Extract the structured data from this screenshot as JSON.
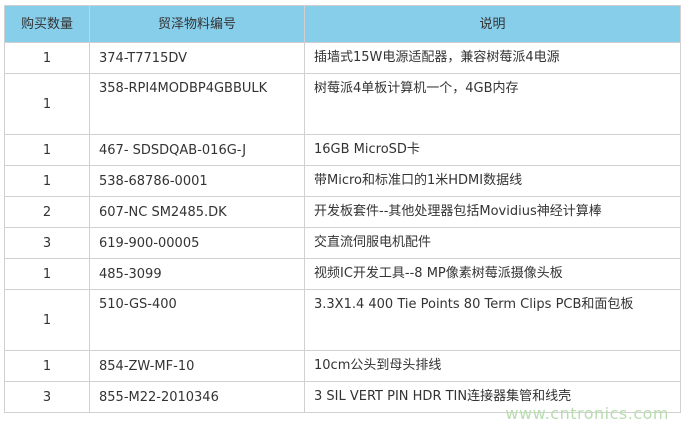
{
  "headers": [
    "购买数量",
    "贸泽物料编号",
    "说明"
  ],
  "rows": [
    {
      "qty": "1",
      "part": "374-T7715DV",
      "desc": "插墙式15W电源适配器，兼容树莓派4电源"
    },
    {
      "qty": "1",
      "part": "358-RPI4MODBP4GBBULK",
      "desc": "树莓派4单板计算机一个，4GB内存"
    },
    {
      "qty": "1",
      "part": "467- SDSDQAB-016G-J",
      "desc": "16GB MicroSD卡"
    },
    {
      "qty": "1",
      "part": "538-68786-0001",
      "desc": "带Micro和标准口的1米HDMI数据线"
    },
    {
      "qty": "2",
      "part": "607-NC SM2485.DK",
      "desc": "开发板套件--其他处理器包括Movidius神经计算棒"
    },
    {
      "qty": "3",
      "part": "619-900-00005",
      "desc": "交直流伺服电机配件"
    },
    {
      "qty": "1",
      "part": "485-3099",
      "desc": "视频IC开发工具--8 MP像素树莓派摄像头板"
    },
    {
      "qty": "1",
      "part": "510-GS-400",
      "desc": "3.3X1.4 400 Tie Points 80 Term Clips PCB和面包板"
    },
    {
      "qty": "1",
      "part": "854-ZW-MF-10",
      "desc": "10cm公头到母头排线"
    },
    {
      "qty": "3",
      "part": "855-M22-2010346",
      "desc": "3 SIL VERT PIN HDR TIN连接器集管和线壳"
    }
  ],
  "watermark": "www.cntronics.com"
}
